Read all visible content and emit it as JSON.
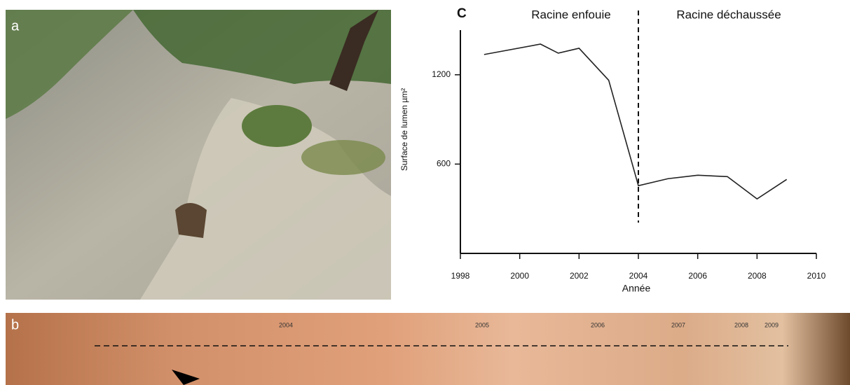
{
  "photo_label": "a",
  "strip_label": "b",
  "strip_years": [
    "2004",
    "2005",
    "2006",
    "2007",
    "2008",
    "2009"
  ],
  "chart_data": {
    "type": "line",
    "panel_label": "C",
    "x_label": "Année",
    "y_label": "Surface de lumen µm²",
    "x": [
      1998.8,
      2000.7,
      2001.3,
      2002,
      2003,
      2004,
      2005,
      2006,
      2007,
      2008,
      2009
    ],
    "values": [
      1336,
      1406,
      1345,
      1378,
      1163,
      455,
      502,
      525,
      516,
      366,
      497
    ],
    "color": "#222",
    "xlim": [
      1998,
      2010
    ],
    "xticks": [
      1998,
      2000,
      2002,
      2004,
      2006,
      2008,
      2010
    ],
    "ylim": [
      0,
      1500
    ],
    "yticks": [
      600,
      1200
    ],
    "divider_x": 2004,
    "annotations": [
      "Racine enfouie",
      "Racine déchaussée"
    ]
  }
}
